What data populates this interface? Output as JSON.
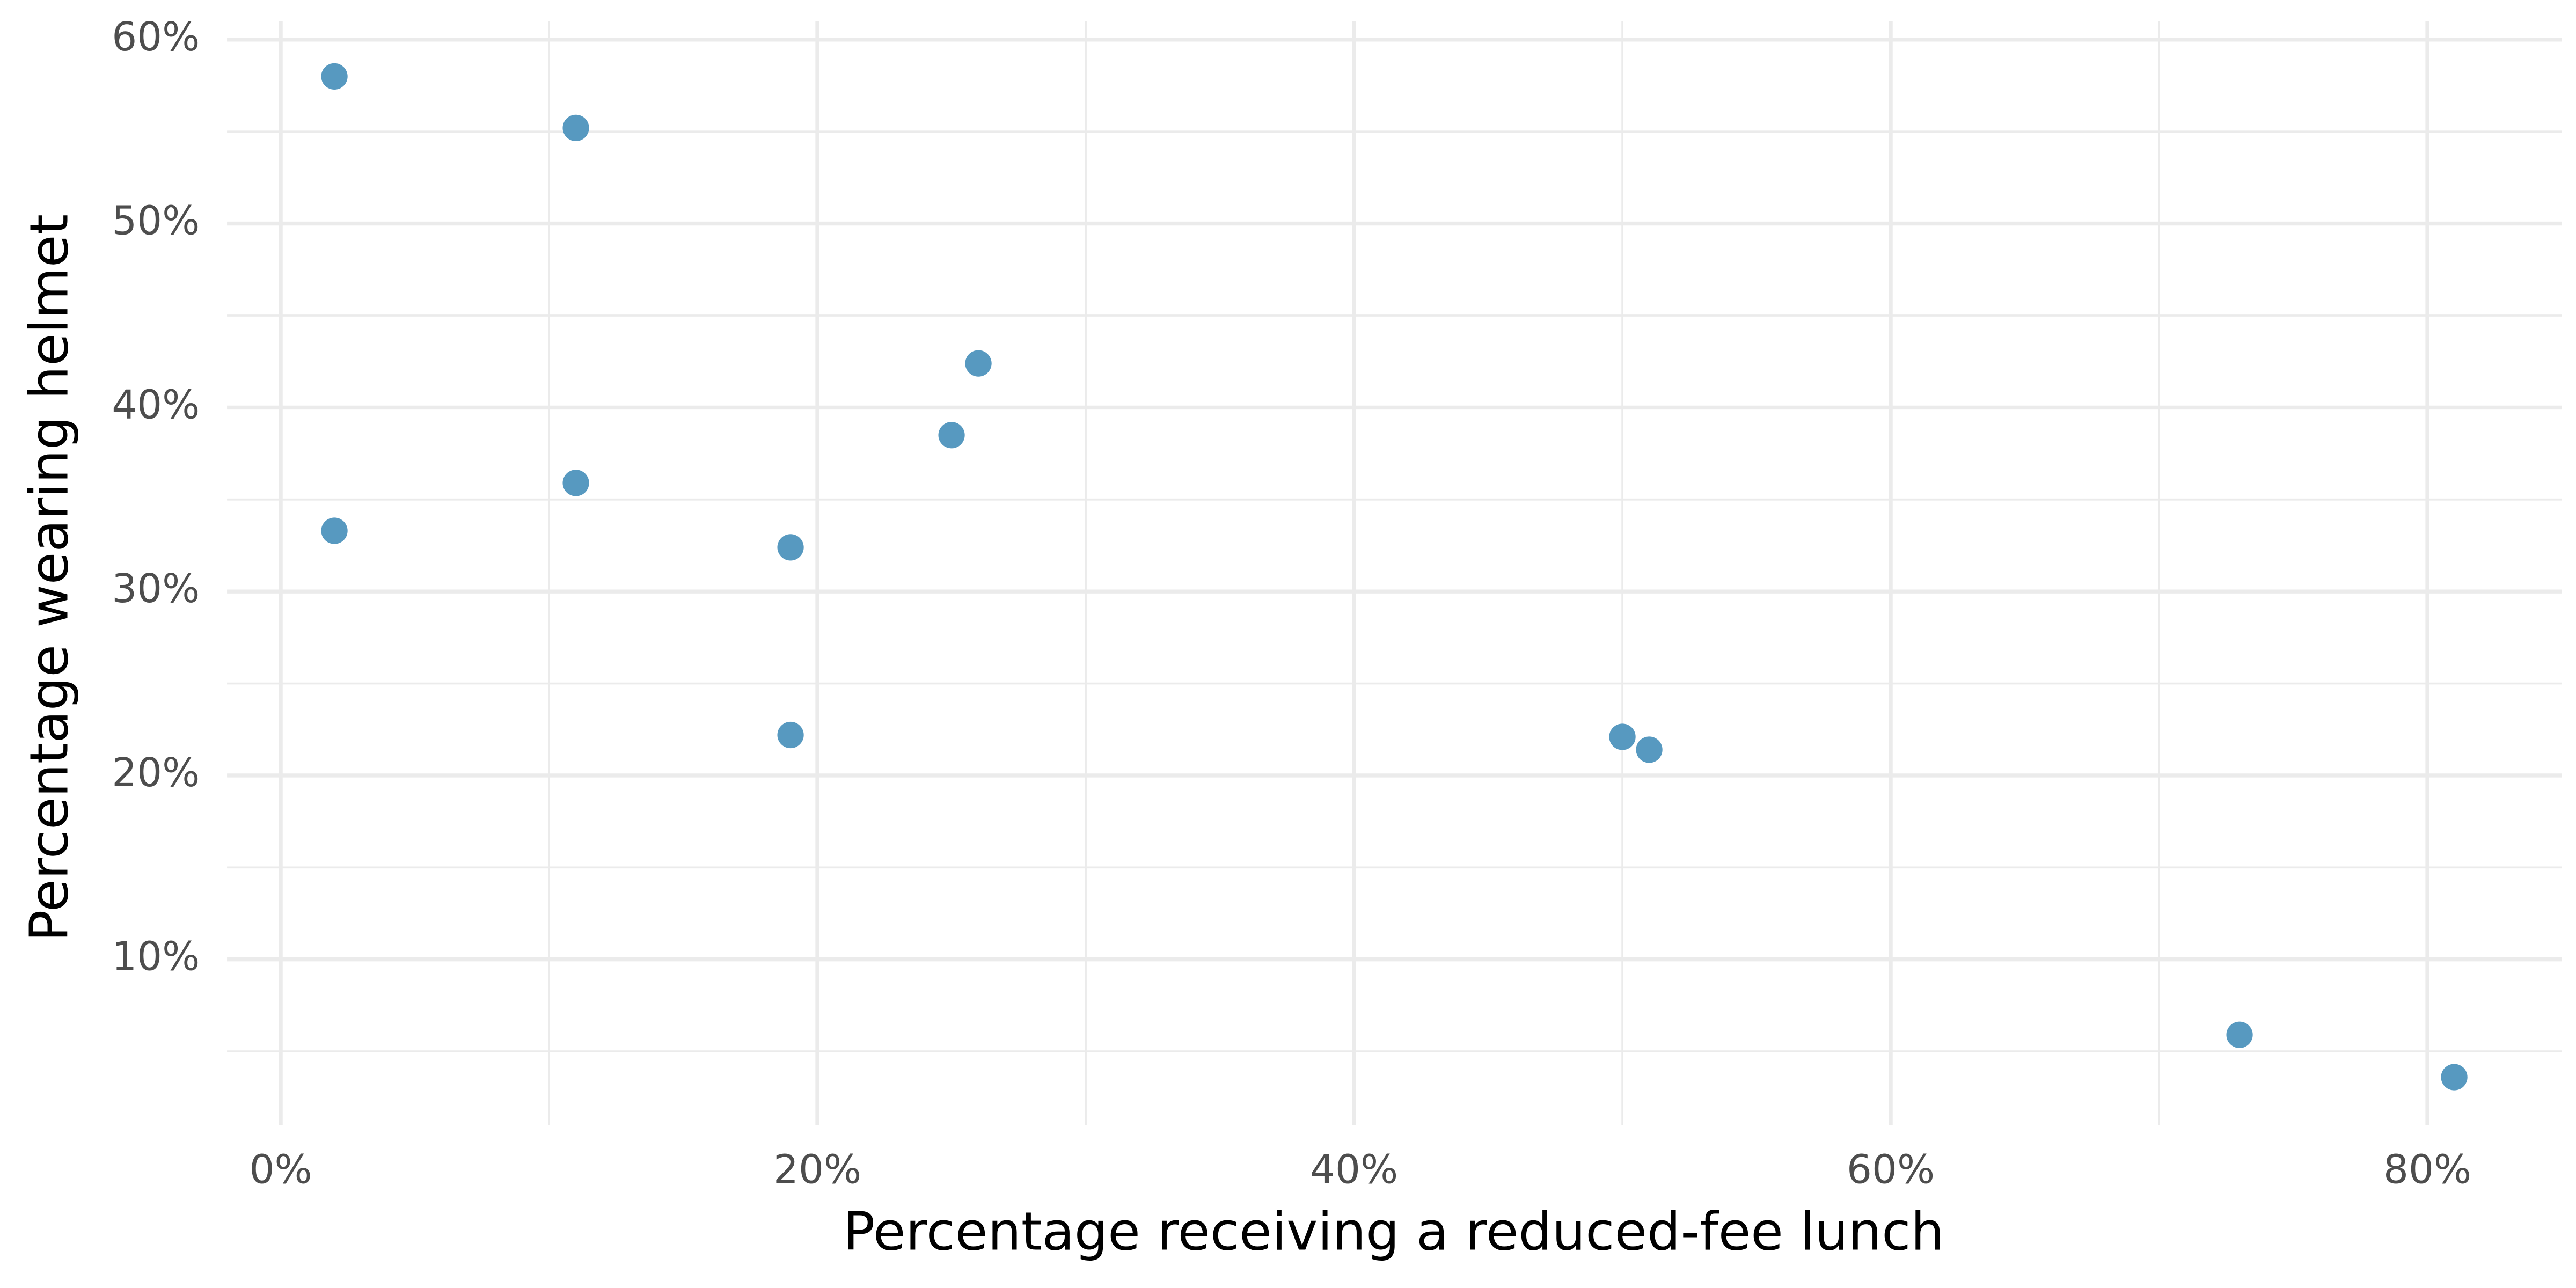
{
  "chart_data": {
    "type": "scatter",
    "x_label": "Percentage receiving a reduced-fee lunch",
    "y_label": "Percentage wearing helmet",
    "color": "#5799c0",
    "grid": true,
    "xlim": [
      -2,
      85
    ],
    "ylim": [
      1,
      61
    ],
    "xticks": [
      {
        "value": 0,
        "label": "0%"
      },
      {
        "value": 20,
        "label": "20%"
      },
      {
        "value": 40,
        "label": "40%"
      },
      {
        "value": 60,
        "label": "60%"
      },
      {
        "value": 80,
        "label": "80%"
      }
    ],
    "yticks": [
      {
        "value": 10,
        "label": "10%"
      },
      {
        "value": 20,
        "label": "20%"
      },
      {
        "value": 30,
        "label": "30%"
      },
      {
        "value": 40,
        "label": "40%"
      },
      {
        "value": 50,
        "label": "50%"
      },
      {
        "value": 60,
        "label": "60%"
      }
    ],
    "xminor": [
      10,
      30,
      50,
      70
    ],
    "yminor": [
      5,
      15,
      25,
      35,
      45,
      55
    ],
    "x": [
      2,
      11,
      2,
      11,
      19,
      19,
      25,
      26,
      50,
      51,
      73,
      81
    ],
    "values": [
      58,
      55.2,
      33.3,
      35.9,
      32.4,
      22.2,
      38.5,
      42.4,
      22.1,
      21.4,
      5.9,
      3.6
    ]
  }
}
